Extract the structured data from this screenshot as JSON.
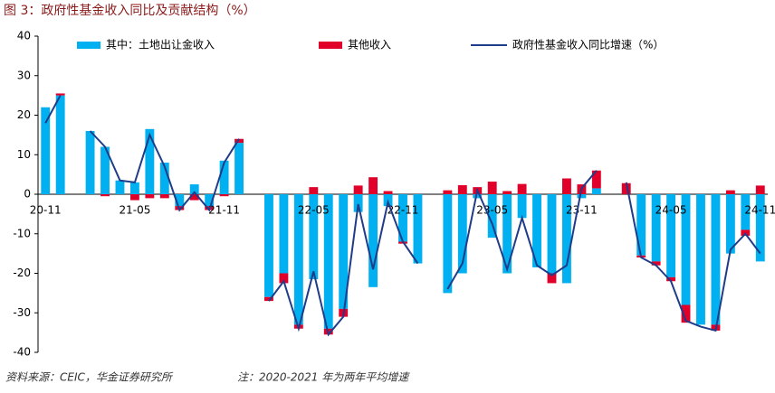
{
  "chart_data": {
    "type": "bar_line",
    "title": "图 3：政府性基金收入同比及贡献结构（%）",
    "source": "资料来源：CEIC，华金证券研究所",
    "note": "注：2020-2021 年为两年平均增速",
    "categories": [
      "20-11",
      null,
      null,
      null,
      null,
      null,
      "21-05",
      null,
      null,
      null,
      null,
      null,
      "21-11",
      null,
      null,
      null,
      null,
      null,
      "22-05",
      null,
      null,
      null,
      null,
      null,
      "22-11",
      null,
      null,
      null,
      null,
      null,
      "23-05",
      null,
      null,
      null,
      null,
      null,
      "23-11",
      null,
      null,
      null,
      null,
      null,
      "24-05",
      null,
      null,
      null,
      null,
      null,
      "24-11"
    ],
    "series": [
      {
        "name": "其中：土地出让金收入",
        "color": "#00b0f0",
        "kind": "bar",
        "values": [
          22,
          25,
          null,
          16,
          12,
          3.5,
          3,
          16.5,
          8,
          -3,
          2.5,
          -3,
          8.5,
          13,
          null,
          -26,
          -20,
          -33,
          -21.5,
          -34,
          -29,
          -4.5,
          -23.5,
          -3,
          -12,
          -17.5,
          null,
          -25,
          -20,
          -1,
          -11,
          -20,
          -6,
          -18.5,
          -20,
          -22.5,
          -1,
          1.5,
          null,
          0,
          -15.5,
          -17,
          -21,
          -28,
          -33,
          -33,
          -15,
          -9,
          -17
        ]
      },
      {
        "name": "其他收入",
        "color": "#e0002a",
        "kind": "bar",
        "values": [
          0,
          0.5,
          null,
          0,
          -0.5,
          0,
          -1.5,
          -1,
          -1,
          -1,
          -1.5,
          -1,
          -0.5,
          1,
          null,
          -1,
          -2.5,
          -1,
          1.8,
          -1.5,
          -2,
          2.2,
          4.3,
          0.8,
          -0.5,
          0,
          null,
          1,
          2.3,
          1.8,
          3.2,
          0.8,
          2.6,
          0,
          -2.5,
          4,
          2.5,
          4.5,
          null,
          2.8,
          -0.5,
          -1,
          -1,
          -4.5,
          0,
          -1.5,
          1,
          -1.5,
          2.2
        ]
      },
      {
        "name": "政府性基金收入同比增速（%）",
        "color": "#1f3c88",
        "kind": "line",
        "values": [
          18,
          25,
          null,
          16,
          12,
          3.5,
          3,
          15,
          7,
          -4,
          0.5,
          -4,
          8,
          14,
          null,
          -27,
          -22,
          -34,
          -19.5,
          -35.5,
          -31,
          -2.5,
          -19,
          -2,
          -12,
          -17.5,
          null,
          -24,
          -17.5,
          1,
          -7.5,
          -19,
          -6,
          -18,
          -20.5,
          -18,
          1.5,
          6,
          null,
          3,
          -16,
          -18,
          -22,
          -32,
          -33.5,
          -34.5,
          -14,
          -10,
          -15
        ]
      }
    ],
    "ylim": [
      -40,
      40
    ],
    "yticks": [
      -40,
      -30,
      -20,
      -10,
      0,
      10,
      20,
      30,
      40
    ]
  }
}
